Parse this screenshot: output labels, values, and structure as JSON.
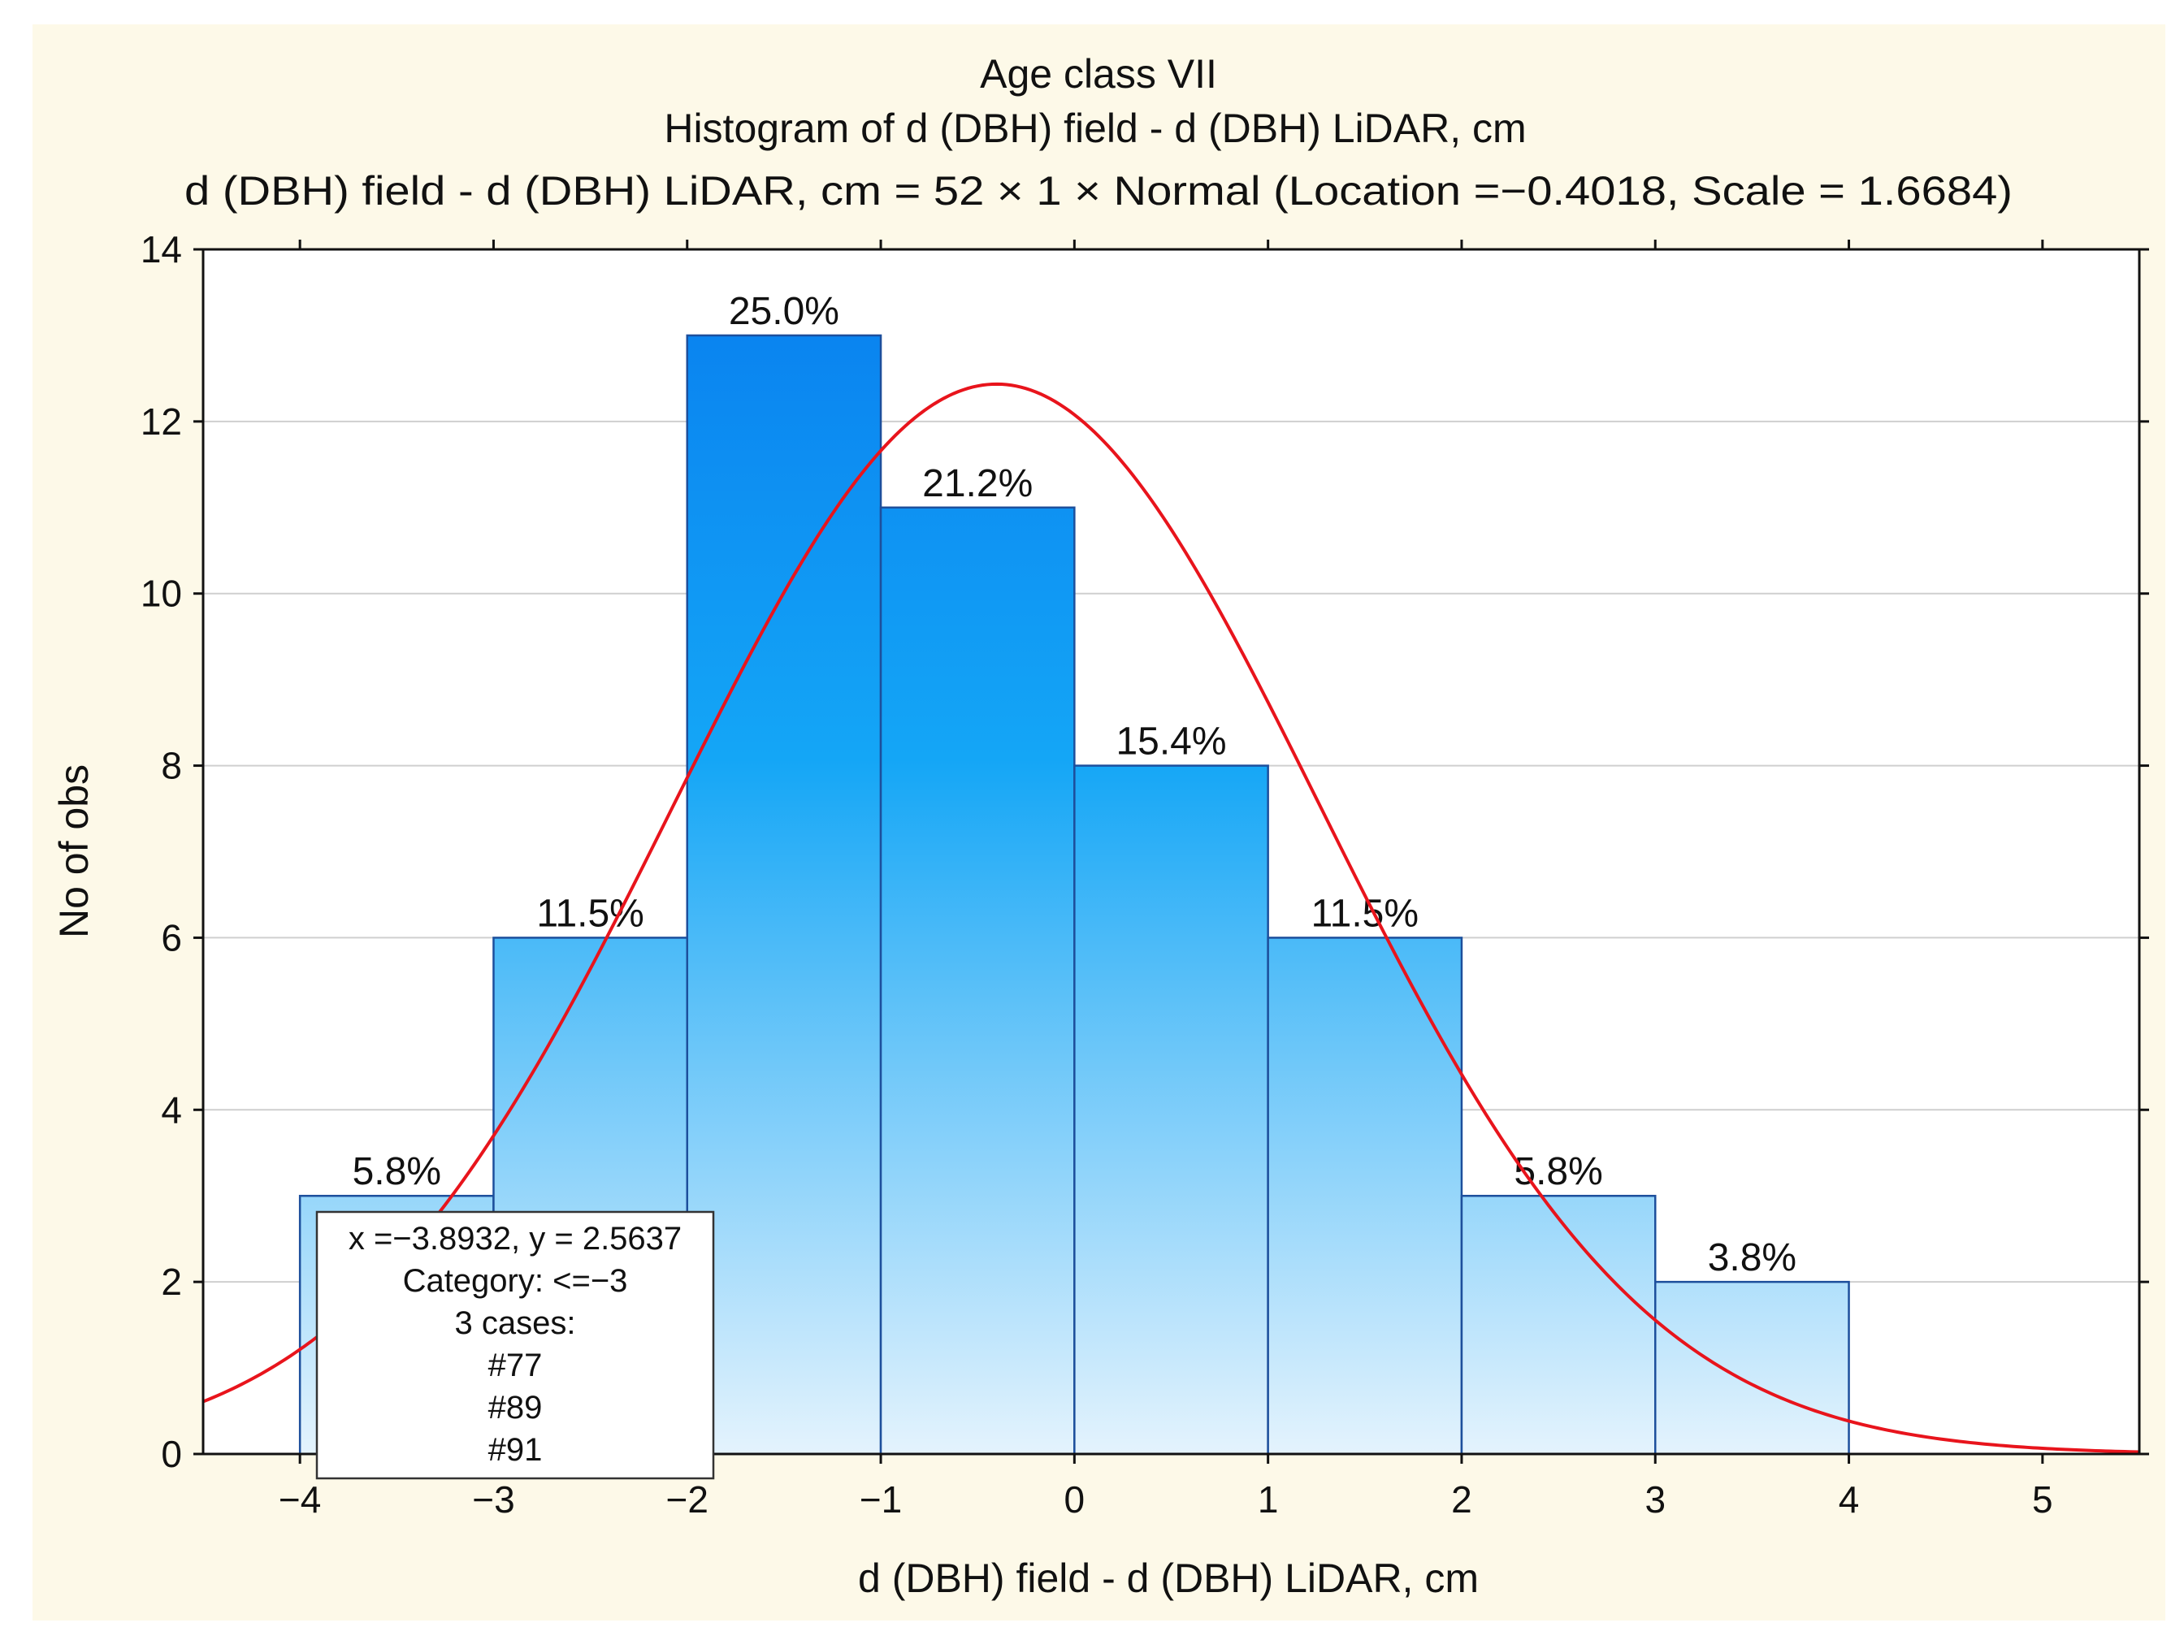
{
  "chart_data": {
    "type": "bar",
    "title_lines": [
      "Age class VII",
      "Histogram of d (DBH) field - d (DBH) LiDAR, cm",
      "d (DBH) field - d (DBH) LiDAR, cm = 52 × 1 × Normal (Location =−0.4018, Scale = 1.6684)"
    ],
    "xlabel": "d (DBH) field - d (DBH) LiDAR, cm",
    "ylabel": "No of obs",
    "xlim": [
      -4.5,
      5.5
    ],
    "ylim": [
      0,
      14
    ],
    "xticks": [
      -4,
      -3,
      -2,
      -1,
      0,
      1,
      2,
      3,
      4,
      5
    ],
    "xtick_labels": [
      "−4",
      "−3",
      "−2",
      "−1",
      "0",
      "1",
      "2",
      "3",
      "4",
      "5"
    ],
    "yticks": [
      0,
      2,
      4,
      6,
      8,
      10,
      12,
      14
    ],
    "ytick_labels": [
      "0",
      "2",
      "4",
      "6",
      "8",
      "10",
      "12",
      "14"
    ],
    "bins": [
      {
        "x0": -4,
        "x1": -3,
        "count": 3,
        "label": "5.8%"
      },
      {
        "x0": -3,
        "x1": -2,
        "count": 6,
        "label": "11.5%"
      },
      {
        "x0": -2,
        "x1": -1,
        "count": 13,
        "label": "25.0%"
      },
      {
        "x0": -1,
        "x1": 0,
        "count": 11,
        "label": "21.2%"
      },
      {
        "x0": 0,
        "x1": 1,
        "count": 8,
        "label": "15.4%"
      },
      {
        "x0": 1,
        "x1": 2,
        "count": 6,
        "label": "11.5%"
      },
      {
        "x0": 2,
        "x1": 3,
        "count": 3,
        "label": "5.8%"
      },
      {
        "x0": 3,
        "x1": 4,
        "count": 2,
        "label": "3.8%"
      }
    ],
    "normal_fit": {
      "n": 52,
      "width": 1,
      "location": -0.4018,
      "scale": 1.6684
    },
    "grid": true,
    "colors": {
      "bar_top": "#0a84f0",
      "bar_mid": "#22aaf5",
      "bar_bottom": "#e4f3fd",
      "bar_stroke": "#1d4f9c",
      "curve": "#e8141c",
      "grid": "#cfcfcf",
      "background": "#fdf9e8",
      "plot_bg": "#ffffff"
    }
  },
  "tooltip": {
    "lines": [
      "x =−3.8932, y = 2.5637",
      "Category: <=−3",
      "3 cases:",
      "#77",
      "#89",
      "#91"
    ]
  }
}
